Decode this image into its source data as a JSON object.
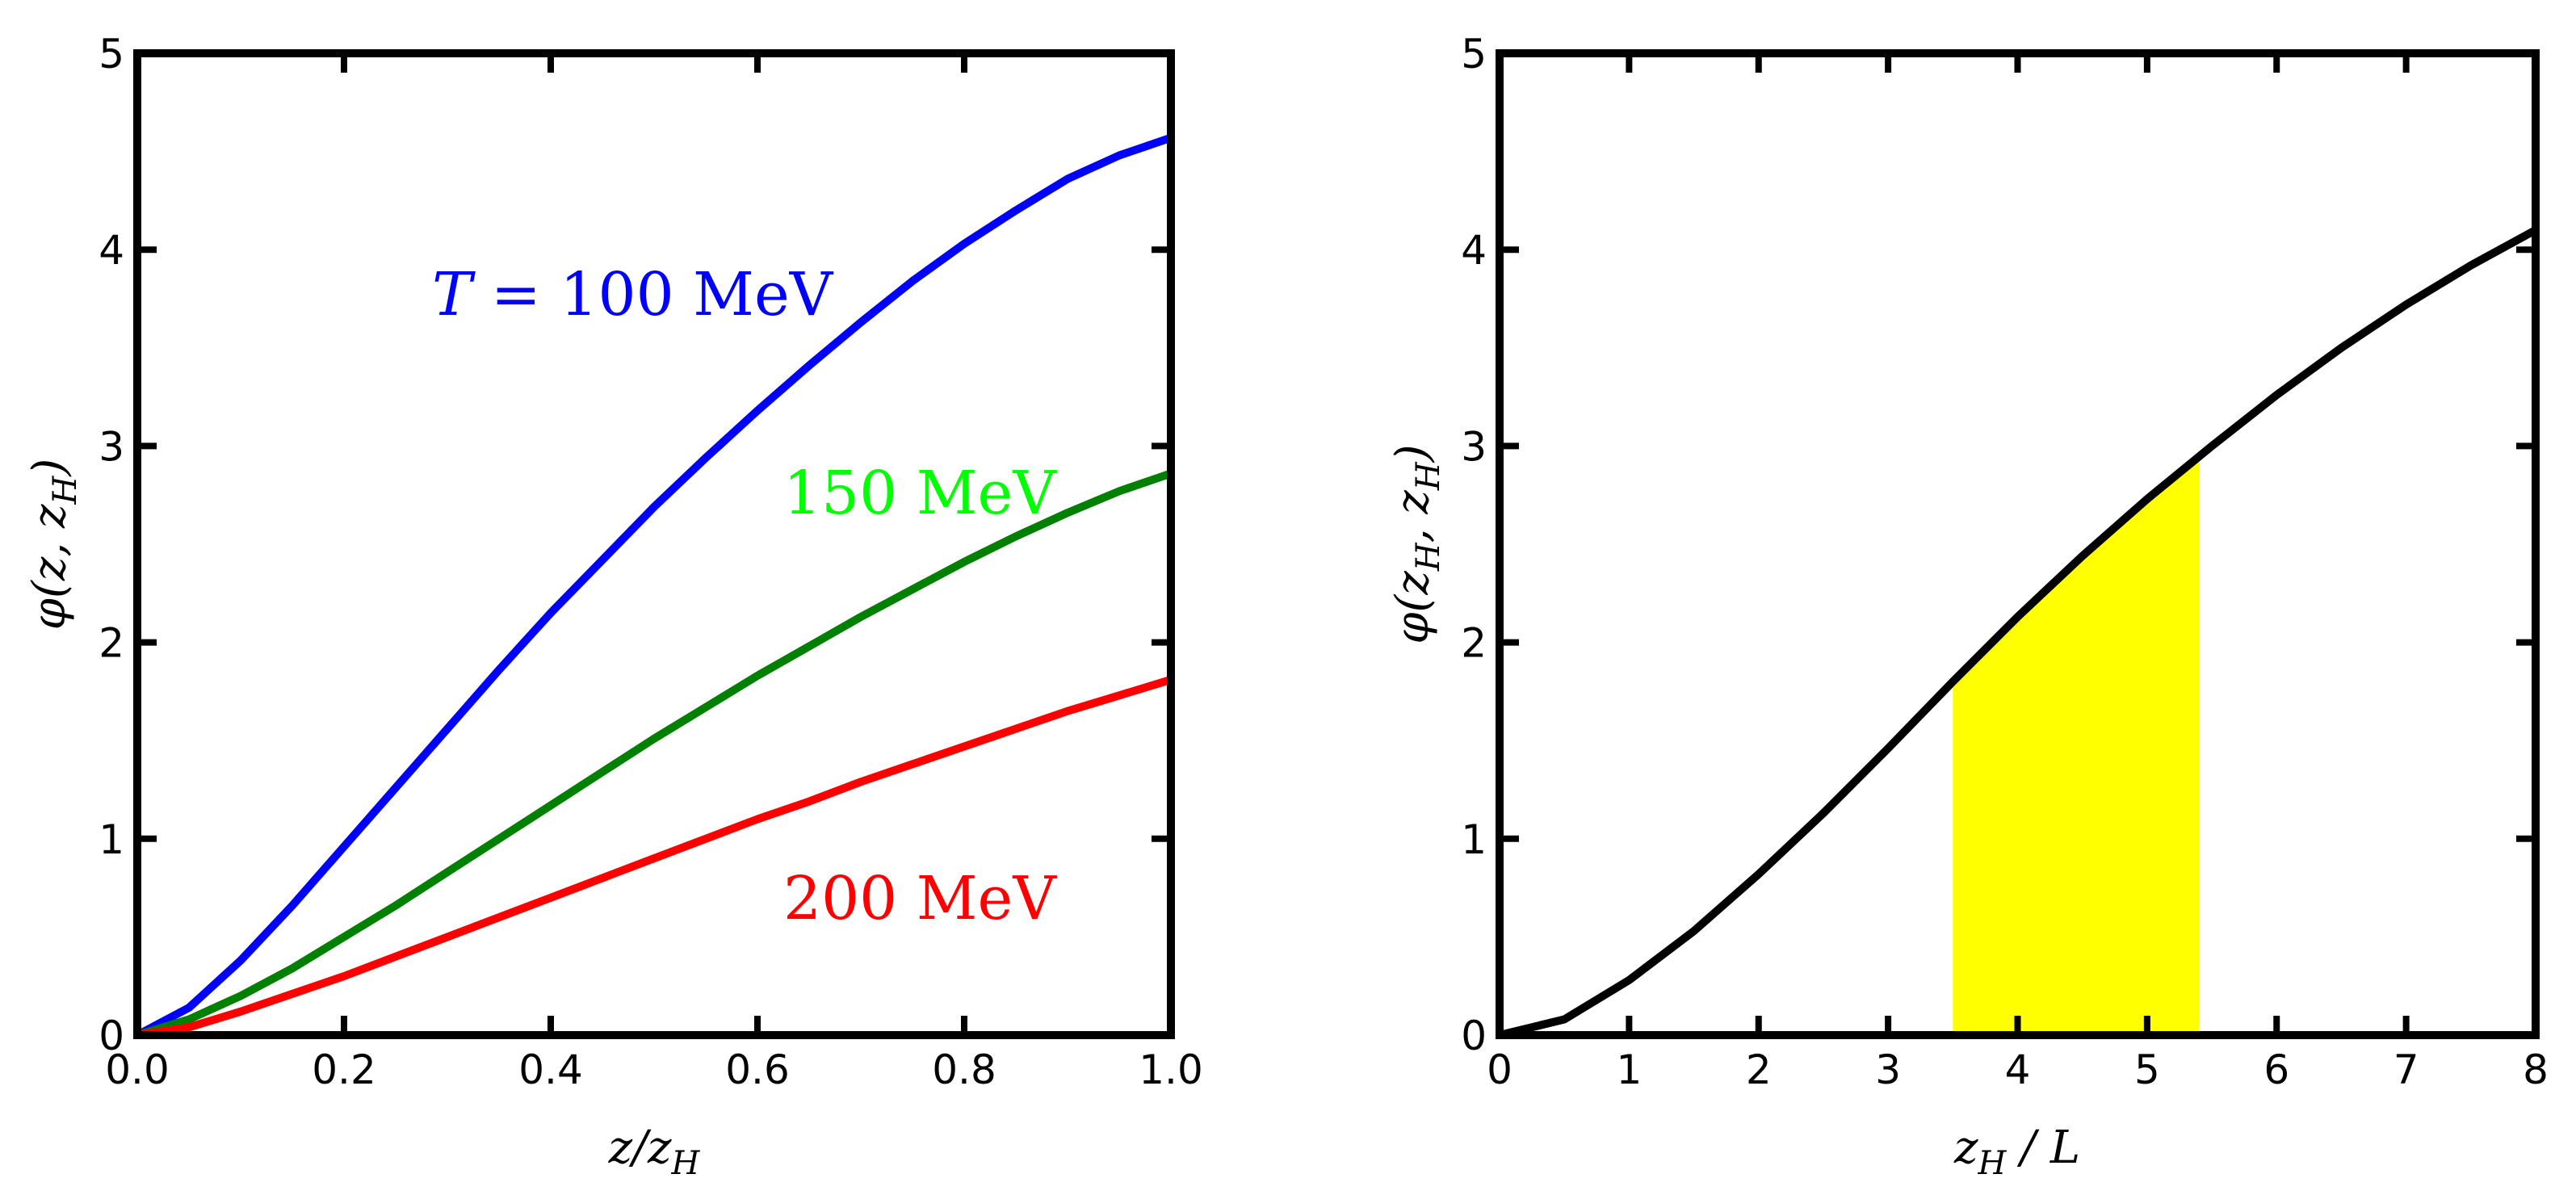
{
  "chart_data": [
    {
      "type": "line",
      "xlabel": "z/z_H",
      "ylabel": "φ(z, z_H)",
      "xlim": [
        0.0,
        1.0
      ],
      "ylim": [
        0,
        5
      ],
      "xticks": [
        "0.0",
        "0.2",
        "0.4",
        "0.6",
        "0.8",
        "1.0"
      ],
      "yticks": [
        "0",
        "1",
        "2",
        "3",
        "4",
        "5"
      ],
      "x": [
        0.0,
        0.05,
        0.1,
        0.15,
        0.2,
        0.25,
        0.3,
        0.35,
        0.4,
        0.45,
        0.5,
        0.55,
        0.6,
        0.65,
        0.7,
        0.75,
        0.8,
        0.85,
        0.9,
        0.95,
        1.0
      ],
      "series": [
        {
          "name": "T = 100 MeV",
          "color": "#0000ff",
          "values": [
            0.0,
            0.14,
            0.38,
            0.66,
            0.96,
            1.26,
            1.56,
            1.86,
            2.15,
            2.42,
            2.69,
            2.94,
            3.18,
            3.41,
            3.63,
            3.84,
            4.03,
            4.2,
            4.36,
            4.48,
            4.57
          ]
        },
        {
          "name": "150 MeV",
          "color": "#008000",
          "values": [
            0.0,
            0.08,
            0.2,
            0.34,
            0.5,
            0.66,
            0.83,
            1.0,
            1.17,
            1.34,
            1.51,
            1.67,
            1.83,
            1.98,
            2.13,
            2.27,
            2.41,
            2.54,
            2.66,
            2.77,
            2.86
          ]
        },
        {
          "name": "200 MeV",
          "color": "#ff0000",
          "values": [
            0.0,
            0.04,
            0.12,
            0.21,
            0.3,
            0.4,
            0.5,
            0.6,
            0.7,
            0.8,
            0.9,
            1.0,
            1.1,
            1.19,
            1.29,
            1.38,
            1.47,
            1.56,
            1.65,
            1.73,
            1.81
          ]
        }
      ],
      "annotations": [
        {
          "text": "T = 100 MeV",
          "color": "#0000ff"
        },
        {
          "text": "150 MeV",
          "color": "#00ff00"
        },
        {
          "text": "200 MeV",
          "color": "#ff0000"
        }
      ]
    },
    {
      "type": "line",
      "xlabel": "z_H / L",
      "ylabel": "φ(z_H, z_H)",
      "xlim": [
        0,
        8
      ],
      "ylim": [
        0,
        5
      ],
      "xticks": [
        "0",
        "1",
        "2",
        "3",
        "4",
        "5",
        "6",
        "7",
        "8"
      ],
      "yticks": [
        "0",
        "1",
        "2",
        "3",
        "4",
        "5"
      ],
      "x": [
        0,
        0.5,
        1,
        1.5,
        2,
        2.5,
        3,
        3.5,
        4,
        4.5,
        5,
        5.5,
        6,
        6.5,
        7,
        7.5,
        8
      ],
      "series": [
        {
          "name": "phi",
          "color": "#000000",
          "values": [
            0.0,
            0.08,
            0.28,
            0.53,
            0.82,
            1.13,
            1.46,
            1.8,
            2.13,
            2.44,
            2.73,
            3.0,
            3.26,
            3.5,
            3.72,
            3.92,
            4.1
          ]
        }
      ],
      "shaded_region": {
        "x_from": 3.5,
        "x_to": 5.4,
        "color": "#ffff00"
      }
    }
  ]
}
